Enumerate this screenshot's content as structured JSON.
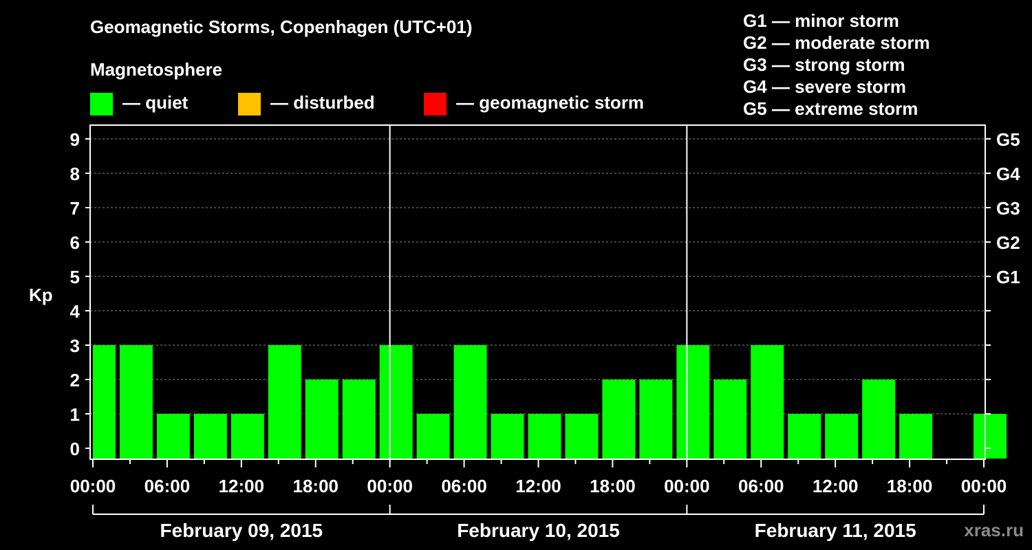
{
  "chart_data": {
    "type": "bar",
    "title": "Geomagnetic Storms, Copenhagen (UTC+01)",
    "ylabel": "Kp",
    "ylim": [
      0,
      9
    ],
    "yticks": [
      "0",
      "1",
      "2",
      "3",
      "4",
      "5",
      "6",
      "7",
      "8",
      "9"
    ],
    "right_ticks": [
      {
        "value": 5,
        "label": "G1"
      },
      {
        "value": 6,
        "label": "G2"
      },
      {
        "value": 7,
        "label": "G3"
      },
      {
        "value": 8,
        "label": "G4"
      },
      {
        "value": 9,
        "label": "G5"
      }
    ],
    "xticks": [
      "00:00",
      "06:00",
      "12:00",
      "18:00",
      "00:00",
      "06:00",
      "12:00",
      "18:00",
      "00:00",
      "06:00",
      "12:00",
      "18:00",
      "00:00"
    ],
    "days": [
      "February 09, 2015",
      "February 10, 2015",
      "February 11, 2015"
    ],
    "interval_hours": 3,
    "first_interval_hours": 2,
    "values": [
      3,
      3,
      1,
      1,
      1,
      3,
      2,
      2,
      3,
      1,
      3,
      1,
      1,
      1,
      2,
      2,
      3,
      2,
      3,
      1,
      1,
      2,
      1,
      0,
      1
    ],
    "grid": "horizontal dashed",
    "legend_placement": "top"
  },
  "legend": {
    "heading": "Magnetosphere",
    "items": [
      {
        "label": "— quiet",
        "color": "#00ff00"
      },
      {
        "label": "— disturbed",
        "color": "#ffc000"
      },
      {
        "label": "— geomagnetic storm",
        "color": "#ff0000"
      }
    ]
  },
  "storm_levels": [
    "G1 — minor storm",
    "G2 — moderate storm",
    "G3 — strong storm",
    "G4 — severe storm",
    "G5 — extreme storm"
  ],
  "watermark": "xras.ru",
  "colors": {
    "background": "#000000",
    "quiet": "#00ff00",
    "axes": "#ffffff",
    "grid": "#888888"
  }
}
